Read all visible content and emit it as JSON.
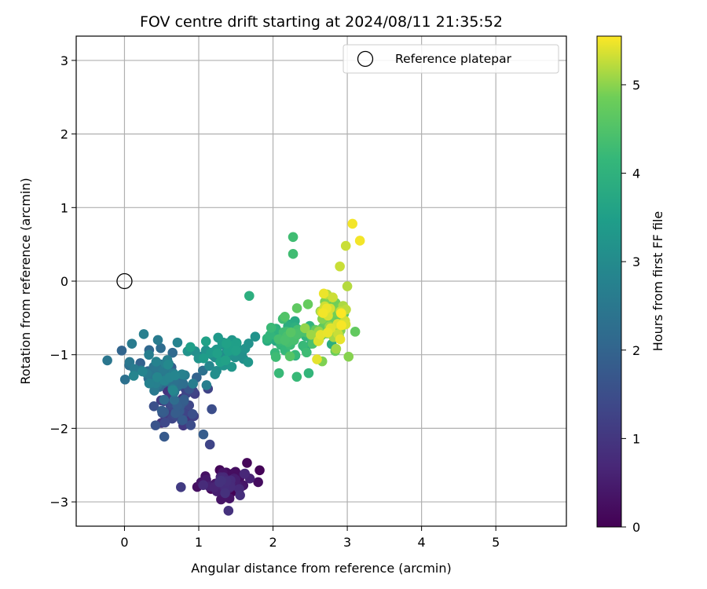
{
  "chart_data": {
    "type": "scatter",
    "title": "FOV centre drift starting at 2024/08/11 21:35:52",
    "xlabel": "Angular distance from reference (arcmin)",
    "ylabel": "Rotation from reference (arcmin)",
    "xlim": [
      -0.65,
      5.95
    ],
    "ylim": [
      -3.33,
      3.33
    ],
    "xticks": [
      0,
      1,
      2,
      3,
      4,
      5
    ],
    "yticks": [
      -3,
      -2,
      -1,
      0,
      1,
      2,
      3
    ],
    "grid": true,
    "legend": {
      "placement": "top-right",
      "entries": [
        "Reference platepar"
      ]
    },
    "reference_point": {
      "label": "Reference platepar",
      "x": 0,
      "y": 0
    },
    "colorbar": {
      "label": "Hours from first FF file",
      "colormap": "viridis",
      "range": [
        0,
        5.55
      ],
      "ticks": [
        0,
        1,
        2,
        3,
        4,
        5
      ]
    },
    "point_groups": [
      {
        "hours_range": [
          0.0,
          0.9
        ],
        "center": [
          1.35,
          -2.75
        ],
        "spread": [
          0.3,
          0.15
        ],
        "count": 60
      },
      {
        "hours_range": [
          0.9,
          1.9
        ],
        "center": [
          0.7,
          -1.75
        ],
        "spread": [
          0.3,
          0.25
        ],
        "count": 55
      },
      {
        "hours_range": [
          1.9,
          2.9
        ],
        "center": [
          0.5,
          -1.25
        ],
        "spread": [
          0.35,
          0.25
        ],
        "count": 75
      },
      {
        "hours_range": [
          2.9,
          3.6
        ],
        "center": [
          1.3,
          -0.95
        ],
        "spread": [
          0.35,
          0.2
        ],
        "count": 55
      },
      {
        "hours_range": [
          3.6,
          4.6
        ],
        "center": [
          2.2,
          -0.8
        ],
        "spread": [
          0.3,
          0.25
        ],
        "count": 60
      },
      {
        "hours_range": [
          4.6,
          5.55
        ],
        "center": [
          2.75,
          -0.55
        ],
        "spread": [
          0.25,
          0.3
        ],
        "count": 70
      }
    ],
    "outlier_points": [
      [
        0.1,
        -0.85,
        2.6
      ],
      [
        0.26,
        -0.72,
        2.7
      ],
      [
        0.45,
        -0.8,
        2.6
      ],
      [
        1.82,
        -2.57,
        0.05
      ],
      [
        1.65,
        -2.47,
        0.1
      ],
      [
        1.4,
        -3.12,
        0.9
      ],
      [
        2.27,
        0.6,
        4.3
      ],
      [
        2.27,
        0.37,
        4.3
      ],
      [
        1.68,
        -0.2,
        3.9
      ],
      [
        3.07,
        0.78,
        5.5
      ],
      [
        3.17,
        0.55,
        5.5
      ],
      [
        2.98,
        0.48,
        5.3
      ],
      [
        2.9,
        0.2,
        5.3
      ],
      [
        3.0,
        -0.07,
        5.2
      ],
      [
        2.08,
        -1.25,
        4.2
      ],
      [
        2.32,
        -1.3,
        4.2
      ],
      [
        2.48,
        -1.25,
        4.1
      ],
      [
        2.85,
        -0.92,
        5.1
      ],
      [
        0.76,
        -2.8,
        1.1
      ],
      [
        1.15,
        -2.22,
        1.3
      ]
    ]
  }
}
